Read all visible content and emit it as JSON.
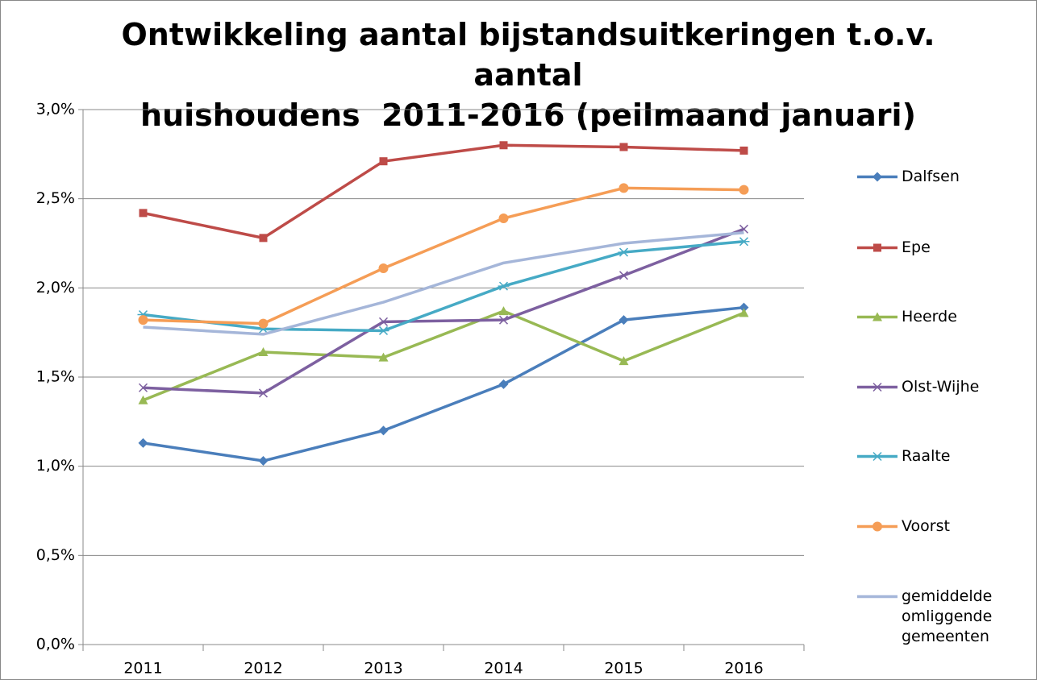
{
  "chart_data": {
    "type": "line",
    "title": "Ontwikkeling aantal bijstandsuitkeringen t.o.v. aantal\nhuishoudens  2011-2016 (peilmaand januari)",
    "categories": [
      "2011",
      "2012",
      "2013",
      "2014",
      "2015",
      "2016"
    ],
    "ylim": [
      0,
      3
    ],
    "yticks": [
      {
        "value": 0,
        "label": "0,0%"
      },
      {
        "value": 0.5,
        "label": "0,5%"
      },
      {
        "value": 1,
        "label": "1,0%"
      },
      {
        "value": 1.5,
        "label": "1,5%"
      },
      {
        "value": 2,
        "label": "2,0%"
      },
      {
        "value": 2.5,
        "label": "2,5%"
      },
      {
        "value": 3,
        "label": "3,0%"
      }
    ],
    "grid": true,
    "legend": "right",
    "series": [
      {
        "name": "Dalfsen",
        "color": "#4a7ebb",
        "marker": "diamond",
        "values": [
          1.13,
          1.03,
          1.2,
          1.46,
          1.82,
          1.89
        ]
      },
      {
        "name": "Epe",
        "color": "#be4b48",
        "marker": "square",
        "values": [
          2.42,
          2.28,
          2.71,
          2.8,
          2.79,
          2.77
        ]
      },
      {
        "name": "Heerde",
        "color": "#98b954",
        "marker": "triangle",
        "values": [
          1.37,
          1.64,
          1.61,
          1.87,
          1.59,
          1.86
        ]
      },
      {
        "name": "Olst-Wijhe",
        "color": "#7d60a0",
        "marker": "x",
        "values": [
          1.44,
          1.41,
          1.81,
          1.82,
          2.07,
          2.33
        ]
      },
      {
        "name": "Raalte",
        "color": "#46aac5",
        "marker": "star",
        "values": [
          1.85,
          1.77,
          1.76,
          2.01,
          2.2,
          2.26
        ]
      },
      {
        "name": "Voorst",
        "color": "#f59d56",
        "marker": "circle",
        "values": [
          1.82,
          1.8,
          2.11,
          2.39,
          2.56,
          2.55
        ]
      },
      {
        "name": "gemiddelde omliggende gemeenten",
        "color": "#a5b6d9",
        "marker": "none",
        "values": [
          1.78,
          1.74,
          1.92,
          2.14,
          2.25,
          2.31
        ]
      }
    ]
  }
}
